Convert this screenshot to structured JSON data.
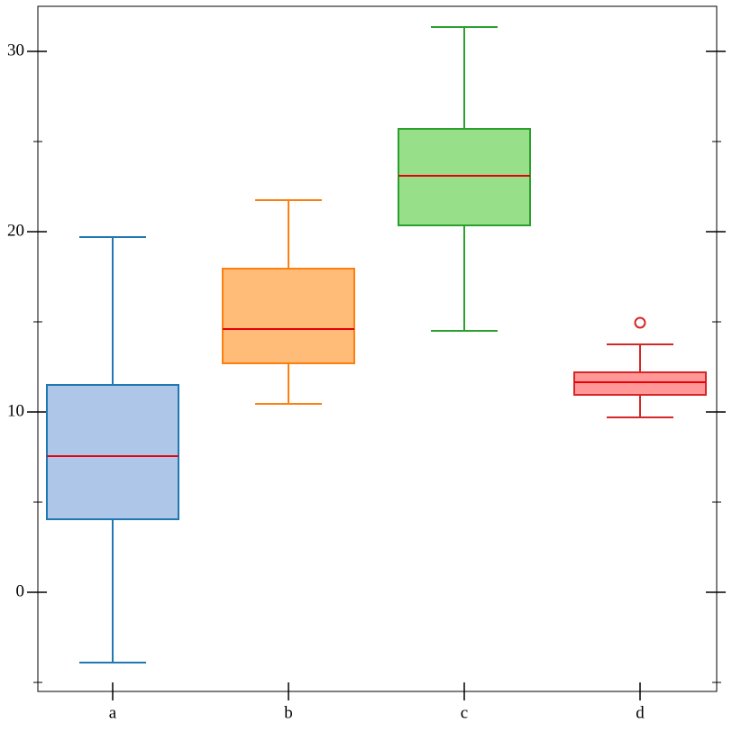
{
  "chart_data": {
    "type": "box",
    "categories": [
      "a",
      "b",
      "c",
      "d"
    ],
    "boxes": [
      {
        "whislo": -3.9,
        "q1": 4.05,
        "med": 7.55,
        "q3": 11.5,
        "whishi": 19.7,
        "fliers": [],
        "color": "#1f77b4",
        "fill": "#aec7e8"
      },
      {
        "whislo": 10.45,
        "q1": 12.7,
        "med": 14.6,
        "q3": 17.95,
        "whishi": 21.75,
        "fliers": [],
        "color": "#ff7f0e",
        "fill": "#ffbb78"
      },
      {
        "whislo": 14.5,
        "q1": 20.35,
        "med": 23.1,
        "q3": 25.7,
        "whishi": 31.35,
        "fliers": [],
        "color": "#2ca02c",
        "fill": "#98df8a"
      },
      {
        "whislo": 9.7,
        "q1": 10.95,
        "med": 11.65,
        "q3": 12.2,
        "whishi": 13.75,
        "fliers": [
          14.95
        ],
        "color": "#d62728",
        "fill": "#ff9896"
      }
    ],
    "median_color": "#e8000b",
    "ylim": [
      -5.5,
      32.5
    ],
    "yticks": [
      0,
      10,
      20,
      30
    ],
    "minor_yticks": [
      -5,
      5,
      15,
      25
    ]
  }
}
